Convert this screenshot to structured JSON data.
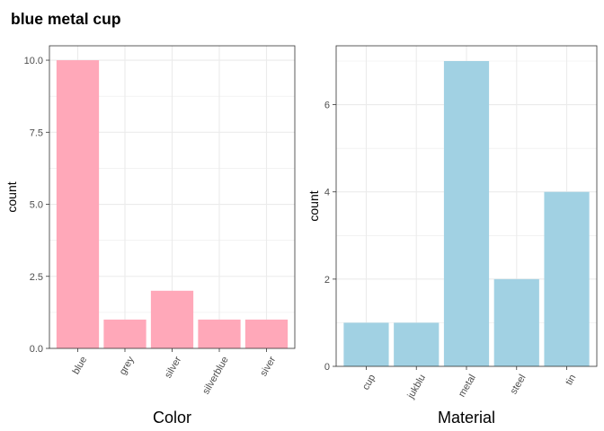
{
  "title": "blue metal cup",
  "colors": {
    "color_bar": "#ffa8b9",
    "material_bar": "#a1d1e3",
    "grid": "#ebebeb",
    "panel_border": "#333333"
  },
  "chart_data": [
    {
      "type": "bar",
      "title": "",
      "xlabel": "Color",
      "ylabel": "count",
      "categories": [
        "blue",
        "grey",
        "silver",
        "silverblue",
        "siver"
      ],
      "values": [
        10,
        1,
        2,
        1,
        1
      ],
      "ylim": [
        0,
        10.5
      ],
      "yticks": [
        "0.0",
        "2.5",
        "5.0",
        "7.5",
        "10.0"
      ],
      "ytick_values": [
        0,
        2.5,
        5,
        7.5,
        10
      ],
      "grid": true,
      "legend": "none"
    },
    {
      "type": "bar",
      "title": "",
      "xlabel": "Material",
      "ylabel": "count",
      "categories": [
        "cup",
        "jukblu",
        "metal",
        "steel",
        "tin"
      ],
      "values": [
        1,
        1,
        7,
        2,
        4
      ],
      "ylim": [
        0,
        7.35
      ],
      "yticks": [
        "0",
        "2",
        "4",
        "6"
      ],
      "ytick_values": [
        0,
        2,
        4,
        6
      ],
      "grid": true,
      "legend": "none"
    }
  ]
}
